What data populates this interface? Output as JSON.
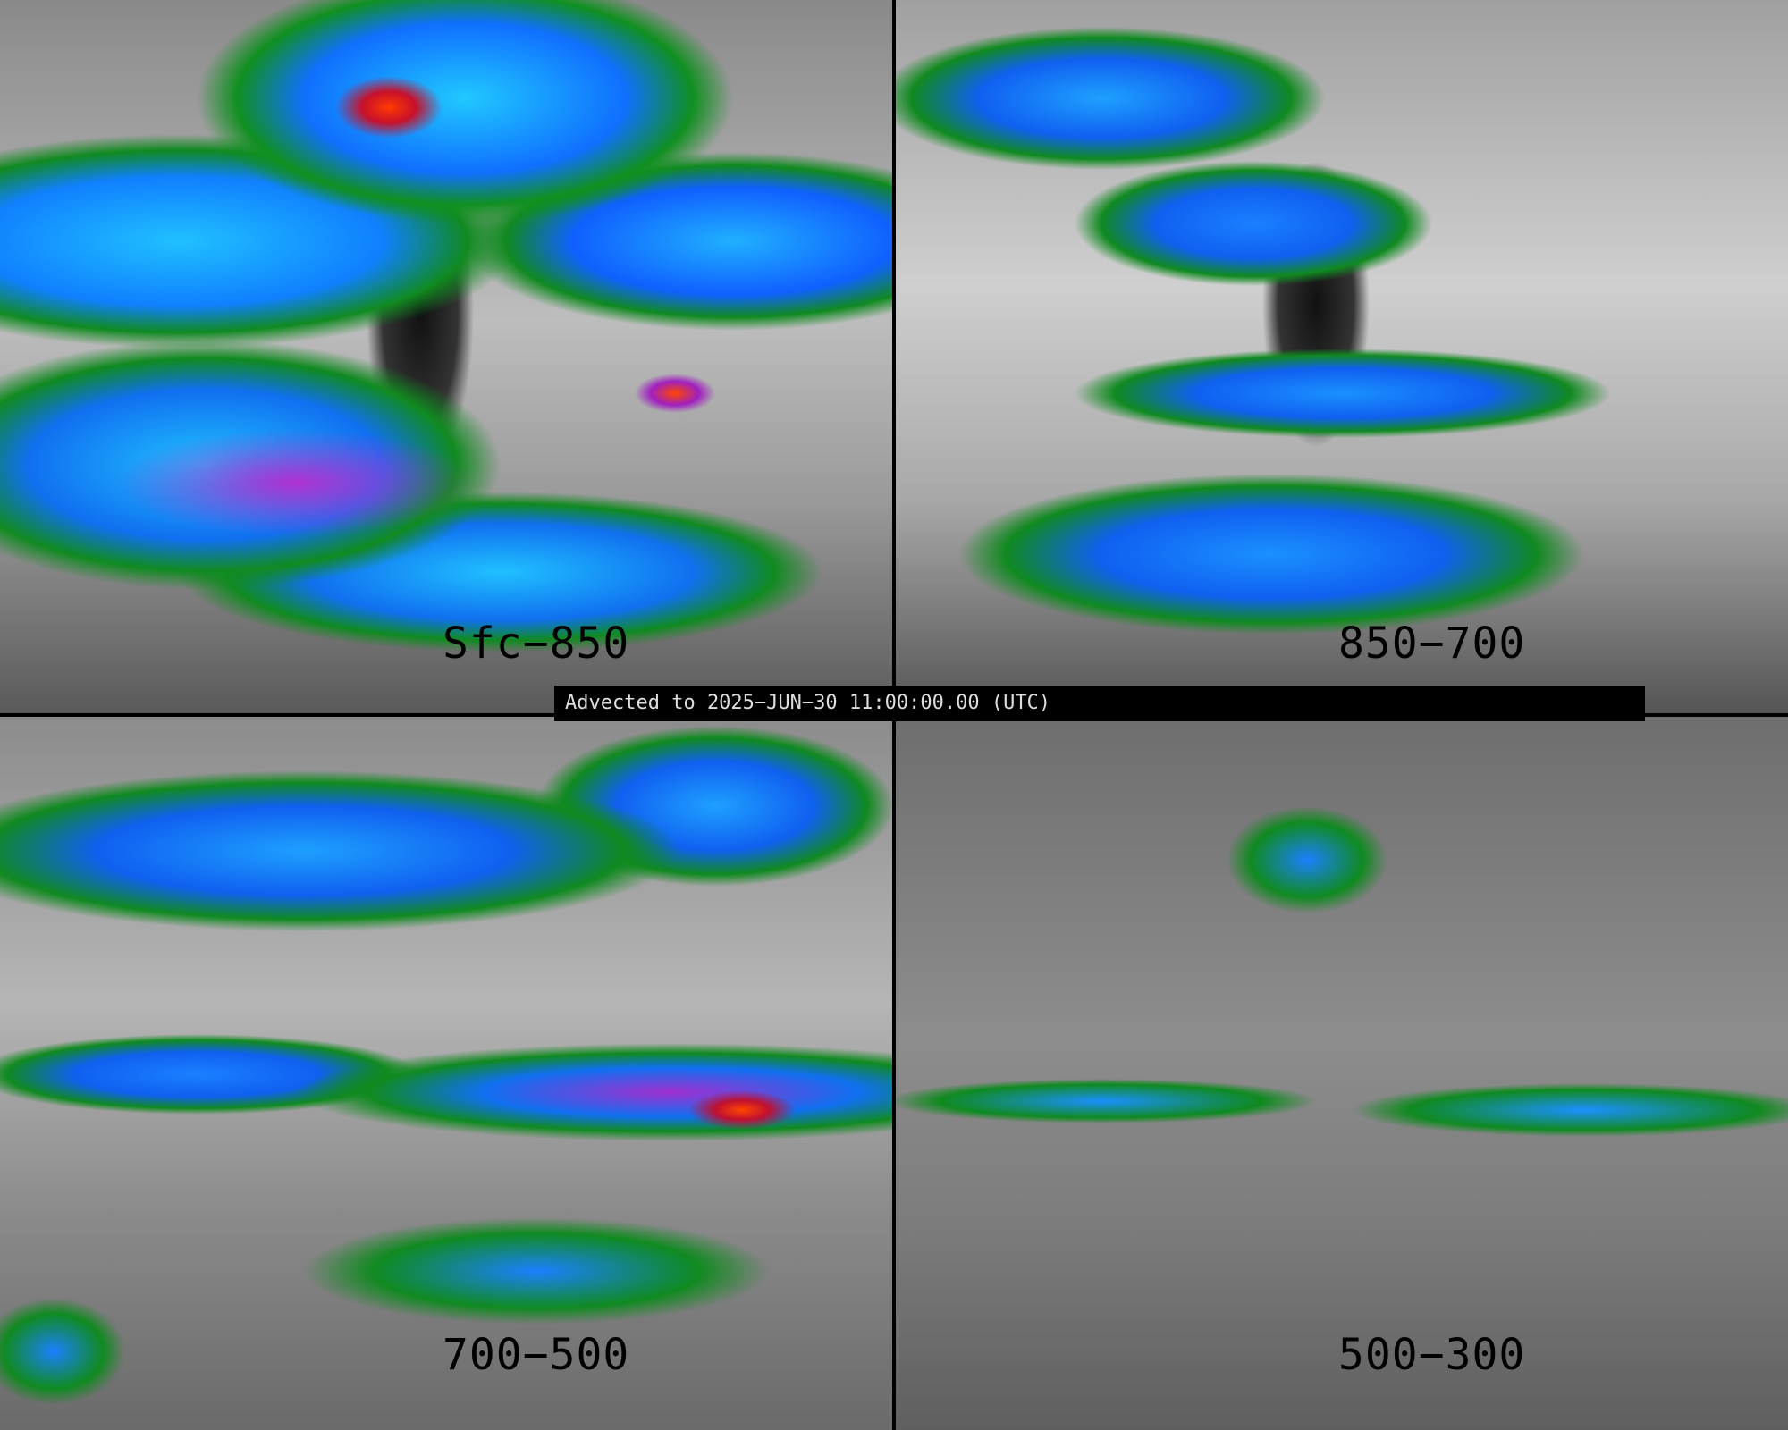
{
  "panels": [
    {
      "label": "Sfc−850"
    },
    {
      "label": "850−700"
    },
    {
      "label": "700−500"
    },
    {
      "label": "500−300"
    }
  ],
  "banner": "Advected to 2025−JUN−30 11:00:00.00 (UTC)",
  "colors": {
    "low": "#808080",
    "mid_green": "#108a20",
    "blue": "#1070f0",
    "cyan": "#20c8ff",
    "purple": "#a030d0",
    "red": "#c8102a",
    "orange": "#ff4500"
  }
}
